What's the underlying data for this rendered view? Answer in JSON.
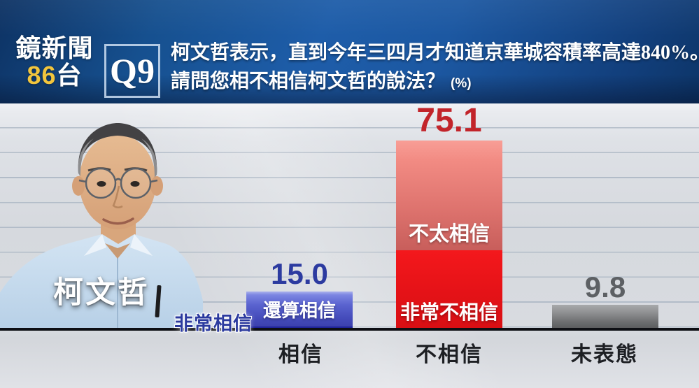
{
  "channel": {
    "name": "鏡新聞",
    "number": "86",
    "suffix": "台"
  },
  "question": {
    "tag": "Q9",
    "line1": "柯文哲表示，直到今年三四月才知道京華城容積率高達840%。",
    "line2": "請問您相不相信柯文哲的說法？",
    "unit": "(%)"
  },
  "subject_name": "柯文哲",
  "chart_data": {
    "type": "bar",
    "subtype": "stacked-vertical",
    "title": "柯文哲表示，直到今年三四月才知道京華城容積率高達840%。請問您相不相信柯文哲的說法？",
    "unit": "%",
    "categories": [
      "相信",
      "不相信",
      "未表態"
    ],
    "values": [
      15.0,
      75.1,
      9.8
    ],
    "display_values": [
      "15.0",
      "75.1",
      "9.8"
    ],
    "ylim": [
      0,
      90
    ],
    "gridline_interval_pct": 10,
    "grid": "horizontal lines on",
    "legend": "none",
    "bars": [
      {
        "category": "相信",
        "total": 15.0,
        "total_label": "15.0",
        "theme": "blue",
        "segments": [
          {
            "label": "還算相信",
            "value_est": 14.0
          },
          {
            "label": "非常相信",
            "value_est": 1.0,
            "label_placement": "outside-left"
          }
        ]
      },
      {
        "category": "不相信",
        "total": 75.1,
        "total_label": "75.1",
        "theme": "red",
        "segments": [
          {
            "label": "不太相信",
            "value_est": 43.6
          },
          {
            "label": "非常不相信",
            "value_est": 31.5
          }
        ]
      },
      {
        "category": "未表態",
        "total": 9.8,
        "total_label": "9.8",
        "theme": "gray",
        "segments": []
      }
    ]
  },
  "colors": {
    "header_blue": "#1c58a2",
    "channel_number_yellow": "#f2c53d",
    "believe_blue": "#2c3ba0",
    "distrust_red": "#c2242a",
    "undecided_gray": "#5d6064",
    "gridline": "#b2bcc8",
    "axis_black": "#0e0f14"
  }
}
